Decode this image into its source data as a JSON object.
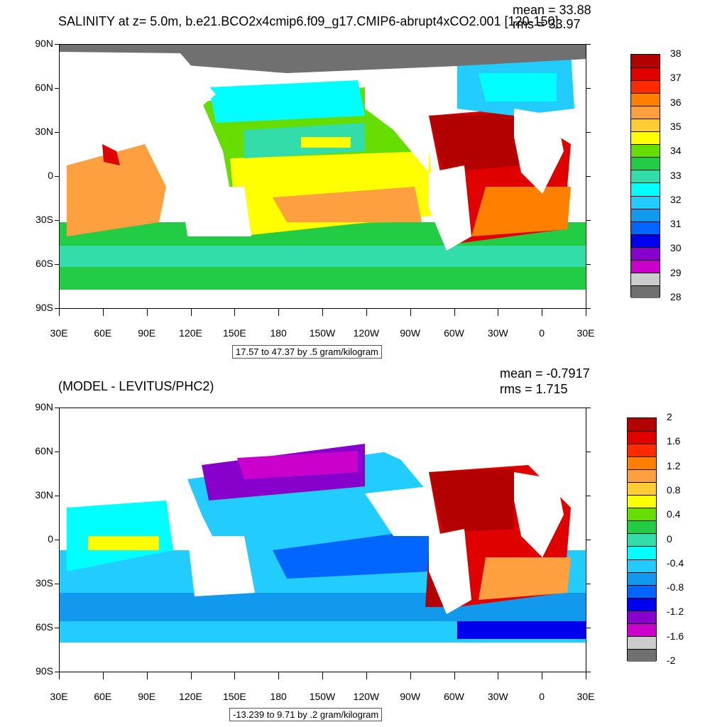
{
  "top": {
    "title": "SALINITY at z=   5.0m, b.e21.BCO2x4cmip6.f09_g17.CMIP6-abrupt4xCO2.001 [120-150]",
    "mean": "mean = 33.88",
    "rms": "rms = 33.97",
    "range": "17.57 to 47.37 by .5 gram/kilogram",
    "colorbar_labels": [
      "38",
      "37",
      "36",
      "35",
      "34",
      "33",
      "32",
      "31",
      "30",
      "29",
      "28"
    ],
    "colors": [
      "#b30000",
      "#e00000",
      "#ff2a00",
      "#ff7f00",
      "#ffa040",
      "#ffcc33",
      "#ffff00",
      "#66dd00",
      "#22cc44",
      "#33ddaa",
      "#00ffff",
      "#22ccff",
      "#1199ee",
      "#0066ff",
      "#0000ee",
      "#8800cc",
      "#cc00cc",
      "#cccccc",
      "#707070"
    ]
  },
  "bottom": {
    "title": "(MODEL - LEVITUS/PHC2)",
    "mean": "mean = -0.7917",
    "rms": "rms = 1.715",
    "range": "-13.239 to 9.71 by .2 gram/kilogram",
    "colorbar_labels": [
      "2",
      "1.6",
      "1.2",
      "0.8",
      "0.4",
      "0",
      "-0.4",
      "-0.8",
      "-1.2",
      "-1.6",
      "-2"
    ],
    "colors": [
      "#b30000",
      "#e00000",
      "#ff2a00",
      "#ff7f00",
      "#ffa040",
      "#ffcc33",
      "#ffff00",
      "#66dd00",
      "#22cc44",
      "#33ddaa",
      "#00ffff",
      "#22ccff",
      "#1199ee",
      "#0066ff",
      "#0000ee",
      "#8800cc",
      "#cc00cc",
      "#cccccc",
      "#707070"
    ]
  },
  "axes": {
    "lat_labels": [
      "90N",
      "60N",
      "30N",
      "0",
      "30S",
      "60S",
      "90S"
    ],
    "lon_labels": [
      "30E",
      "60E",
      "90E",
      "120E",
      "150E",
      "180",
      "150W",
      "120W",
      "90W",
      "60W",
      "30W",
      "0",
      "30E"
    ]
  }
}
